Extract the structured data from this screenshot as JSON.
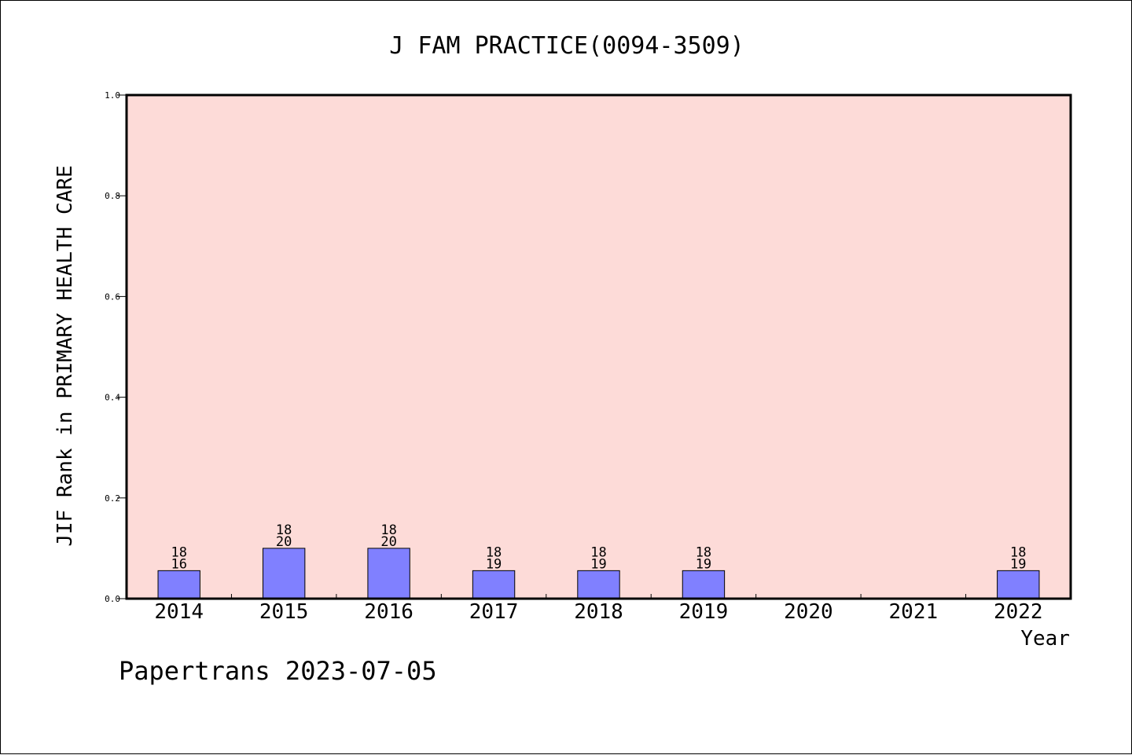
{
  "chart_data": {
    "type": "bar",
    "title": "J FAM PRACTICE(0094-3509)",
    "xlabel": "Year",
    "ylabel": "JIF Rank in PRIMARY HEALTH CARE",
    "ylim": [
      0,
      1.0
    ],
    "yticks": [
      "0.0",
      "0.2",
      "0.4",
      "0.6",
      "0.8",
      "1.0"
    ],
    "categories": [
      "2014",
      "2015",
      "2016",
      "2017",
      "2018",
      "2019",
      "2020",
      "2021",
      "2022"
    ],
    "values": [
      0.0556,
      0.1,
      0.1,
      0.0556,
      0.0556,
      0.0556,
      null,
      null,
      0.0556
    ],
    "labels_top": [
      "18",
      "18",
      "18",
      "18",
      "18",
      "18",
      "",
      "",
      "18"
    ],
    "labels_bottom": [
      "16",
      "20",
      "20",
      "19",
      "19",
      "19",
      "",
      "",
      "19"
    ],
    "grid": false,
    "legend": "none"
  },
  "footer": "Papertrans 2023-07-05",
  "colors": {
    "plot_background": "#fddbd8",
    "bar_fill": "#8080ff",
    "axis": "#000000"
  }
}
